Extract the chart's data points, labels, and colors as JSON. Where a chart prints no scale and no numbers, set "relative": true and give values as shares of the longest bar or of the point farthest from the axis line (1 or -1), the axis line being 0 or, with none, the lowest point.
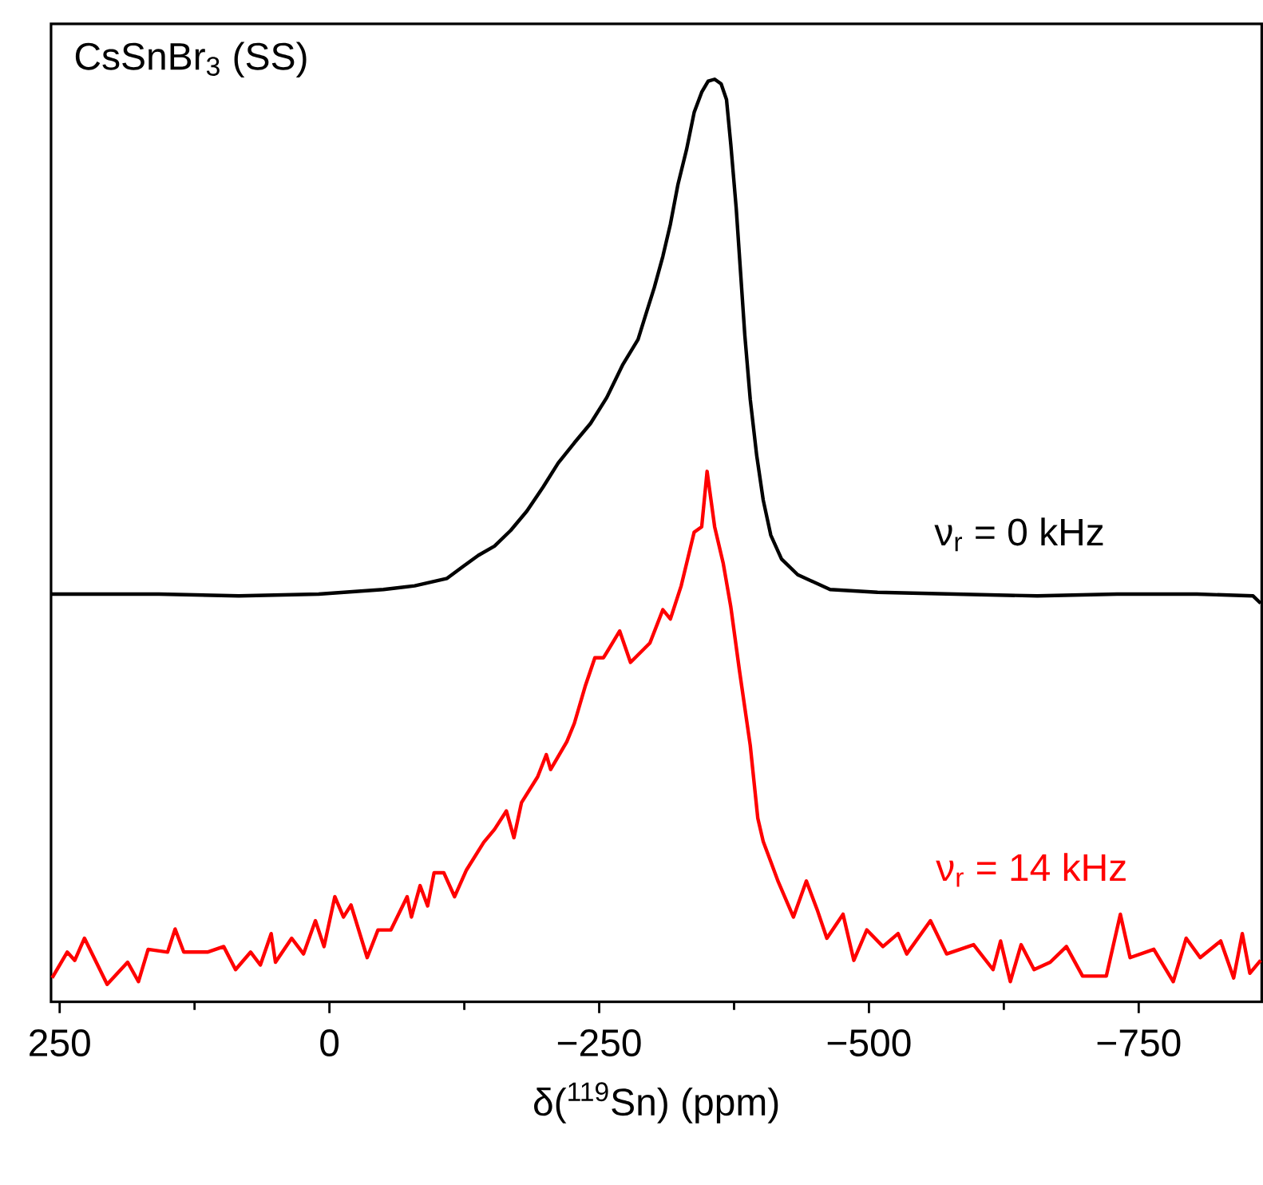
{
  "chart_data": {
    "type": "line",
    "title": "CsSnBr$_{3}$ (SS)",
    "xlabel": "δ($^{119}$Sn) (ppm)",
    "relative": true,
    "xlim": [
      258,
      -864
    ],
    "xticks": [
      250,
      {
        "value": 125,
        "label": null
      },
      0,
      {
        "value": -125,
        "label": null
      },
      {
        "value": -250,
        "label": "−250"
      },
      {
        "value": -375,
        "label": null
      },
      {
        "value": -500,
        "label": "−500"
      },
      {
        "value": -625,
        "label": null
      },
      {
        "value": -750,
        "label": "−750"
      }
    ],
    "series": [
      {
        "name": "ν$_{r}$ = 0 kHz",
        "color": "#000000",
        "x": [
          258,
          232,
          158,
          84,
          10,
          -50,
          -79,
          -109,
          -124,
          -138,
          -153,
          -168,
          -183,
          -198,
          -212,
          -227,
          -242,
          -257,
          -272,
          -286,
          -294,
          -301,
          -309,
          -316,
          -323,
          -331,
          -338,
          -345,
          -351,
          -357,
          -363,
          -368,
          -372,
          -377,
          -381,
          -385,
          -390,
          -396,
          -402,
          -409,
          -419,
          -434,
          -464,
          -508,
          -582,
          -656,
          -730,
          -804,
          -856,
          -863
        ],
        "values": [
          0.442,
          0.442,
          0.442,
          0.44,
          0.442,
          0.447,
          0.451,
          0.459,
          0.472,
          0.484,
          0.494,
          0.511,
          0.532,
          0.558,
          0.584,
          0.606,
          0.627,
          0.655,
          0.691,
          0.718,
          0.748,
          0.774,
          0.808,
          0.843,
          0.886,
          0.924,
          0.964,
          0.986,
          0.998,
          1.0,
          0.995,
          0.978,
          0.929,
          0.86,
          0.791,
          0.722,
          0.653,
          0.592,
          0.544,
          0.506,
          0.48,
          0.463,
          0.447,
          0.444,
          0.442,
          0.44,
          0.442,
          0.442,
          0.44,
          0.432
        ]
      },
      {
        "name": "ν$_{r}$ = 14 kHz",
        "color": "#ff0000",
        "x": [
          257,
          243,
          236,
          227,
          206,
          187,
          177,
          168,
          150,
          143,
          135,
          113,
          98,
          87,
          73,
          64,
          54,
          50,
          35,
          24,
          13,
          5,
          -5,
          -13,
          -20,
          -35,
          -45,
          -57,
          -72,
          -76,
          -84,
          -91,
          -97,
          -106,
          -116,
          -127,
          -143,
          -153,
          -164,
          -171,
          -178,
          -193,
          -201,
          -205,
          -220,
          -227,
          -237,
          -246,
          -254,
          -269,
          -279,
          -297,
          -309,
          -316,
          -326,
          -338,
          -345,
          -350,
          -357,
          -365,
          -372,
          -380,
          -390,
          -397,
          -402,
          -409,
          -416,
          -430,
          -442,
          -452,
          -461,
          -476,
          -486,
          -498,
          -513,
          -527,
          -535,
          -557,
          -572,
          -597,
          -615,
          -622,
          -631,
          -641,
          -653,
          -668,
          -683,
          -698,
          -720,
          -733,
          -742,
          -764,
          -782,
          -794,
          -807,
          -826,
          -838,
          -846,
          -853,
          -863
        ],
        "values": [
          0.026,
          0.054,
          0.045,
          0.069,
          0.019,
          0.043,
          0.022,
          0.057,
          0.054,
          0.079,
          0.054,
          0.054,
          0.06,
          0.035,
          0.054,
          0.04,
          0.074,
          0.043,
          0.069,
          0.052,
          0.088,
          0.06,
          0.114,
          0.092,
          0.105,
          0.048,
          0.078,
          0.078,
          0.114,
          0.092,
          0.126,
          0.104,
          0.14,
          0.14,
          0.114,
          0.143,
          0.173,
          0.187,
          0.207,
          0.178,
          0.216,
          0.244,
          0.268,
          0.252,
          0.282,
          0.302,
          0.342,
          0.373,
          0.373,
          0.402,
          0.368,
          0.389,
          0.425,
          0.415,
          0.451,
          0.509,
          0.515,
          0.575,
          0.515,
          0.475,
          0.428,
          0.359,
          0.278,
          0.199,
          0.174,
          0.152,
          0.13,
          0.092,
          0.131,
          0.1,
          0.069,
          0.095,
          0.045,
          0.078,
          0.06,
          0.074,
          0.052,
          0.088,
          0.052,
          0.062,
          0.035,
          0.066,
          0.022,
          0.062,
          0.035,
          0.043,
          0.06,
          0.028,
          0.028,
          0.095,
          0.048,
          0.057,
          0.022,
          0.069,
          0.048,
          0.066,
          0.026,
          0.074,
          0.031,
          0.045
        ]
      }
    ]
  }
}
